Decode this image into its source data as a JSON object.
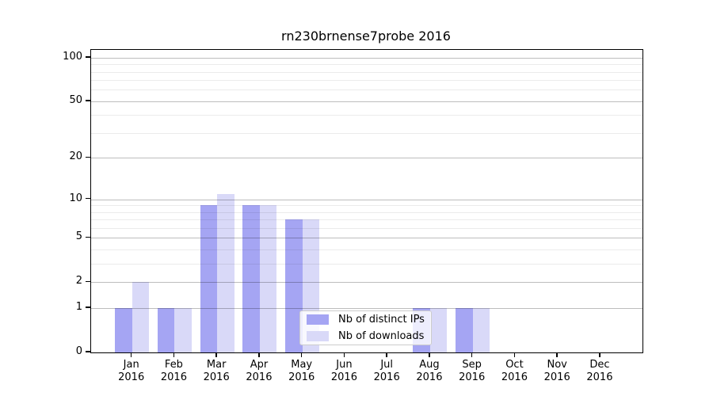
{
  "title": "rn230brnense7probe 2016",
  "chart_data": {
    "type": "bar",
    "title": "rn230brnense7probe 2016",
    "categories": [
      "Jan 2016",
      "Feb 2016",
      "Mar 2016",
      "Apr 2016",
      "May 2016",
      "Jun 2016",
      "Jul 2016",
      "Aug 2016",
      "Sep 2016",
      "Oct 2016",
      "Nov 2016",
      "Dec 2016"
    ],
    "series": [
      {
        "name": "Nb of distinct IPs",
        "color": "#a5a5f3",
        "values": [
          1,
          1,
          9,
          9,
          7,
          0,
          0,
          1,
          1,
          0,
          0,
          0
        ]
      },
      {
        "name": "Nb of downloads",
        "color": "#d9d9f8",
        "values": [
          2,
          1,
          11,
          9,
          7,
          0,
          0,
          1,
          1,
          0,
          0,
          0
        ]
      }
    ],
    "xlabel": "",
    "ylabel": "",
    "yaxis": {
      "scale": "log1p",
      "ticks": [
        0,
        1,
        2,
        5,
        10,
        20,
        50,
        100
      ],
      "minor_ticks": [
        3,
        4,
        6,
        7,
        8,
        9,
        30,
        40,
        60,
        70,
        80,
        90
      ],
      "range": [
        0,
        113
      ]
    },
    "grid": true,
    "legend": {
      "position": "lower center",
      "entries": [
        "Nb of distinct IPs",
        "Nb of downloads"
      ]
    }
  }
}
